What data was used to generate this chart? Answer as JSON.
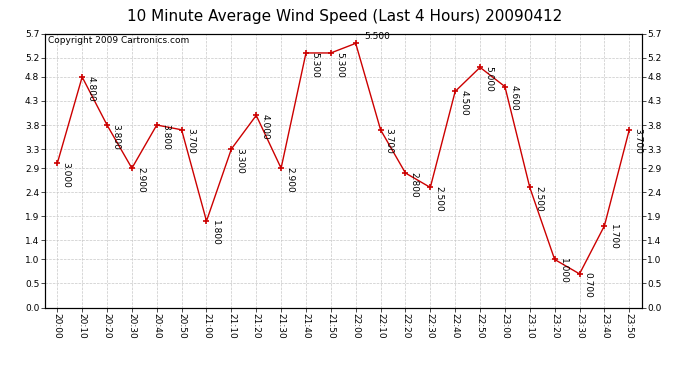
{
  "title": "10 Minute Average Wind Speed (Last 4 Hours) 20090412",
  "copyright": "Copyright 2009 Cartronics.com",
  "x_labels": [
    "20:00",
    "20:10",
    "20:20",
    "20:30",
    "20:40",
    "20:50",
    "21:00",
    "21:10",
    "21:20",
    "21:30",
    "21:40",
    "21:50",
    "22:00",
    "22:10",
    "22:20",
    "22:30",
    "22:40",
    "22:50",
    "23:00",
    "23:10",
    "23:20",
    "23:30",
    "23:40",
    "23:50"
  ],
  "y_values": [
    3.0,
    4.8,
    3.8,
    2.9,
    3.8,
    3.7,
    1.8,
    3.3,
    4.0,
    2.9,
    5.3,
    5.3,
    5.5,
    3.7,
    2.8,
    2.5,
    4.5,
    5.0,
    4.6,
    2.5,
    1.0,
    0.7,
    1.7,
    3.7
  ],
  "point_labels": [
    "3.000",
    "4.800",
    "3.800",
    "2.900",
    "3.800",
    "3.700",
    "1.800",
    "3.300",
    "4.000",
    "2.900",
    "5.300",
    "5.300",
    "5.500",
    "3.700",
    "2.800",
    "2.500",
    "4.500",
    "5.000",
    "4.600",
    "2.500",
    "1.000",
    "0.700",
    "1.700",
    "3.700"
  ],
  "special_label_idx": 12,
  "special_label": "5.500",
  "line_color": "#cc0000",
  "marker_color": "#cc0000",
  "background_color": "#ffffff",
  "grid_color": "#c8c8c8",
  "ylim": [
    0.0,
    5.7
  ],
  "yticks": [
    0.0,
    0.5,
    1.0,
    1.4,
    1.9,
    2.4,
    2.9,
    3.3,
    3.8,
    4.3,
    4.8,
    5.2,
    5.7
  ],
  "title_fontsize": 11,
  "copyright_fontsize": 6.5,
  "tick_fontsize": 6.5,
  "label_fontsize": 6.5
}
